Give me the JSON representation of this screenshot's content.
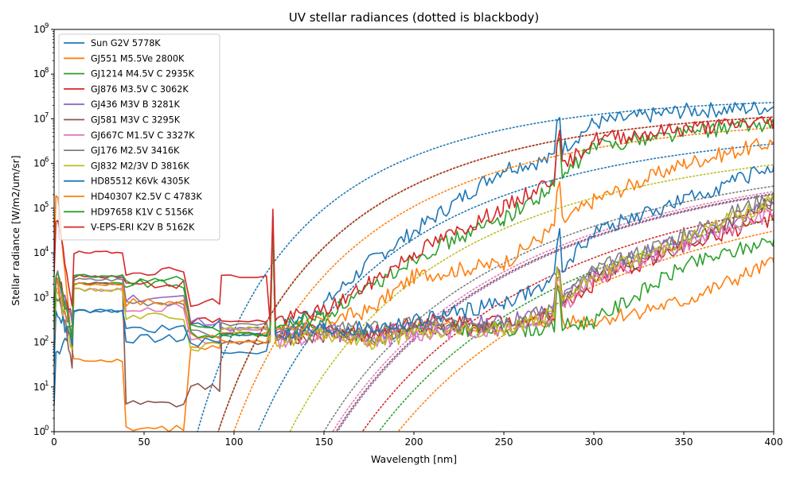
{
  "chart_data": {
    "type": "line",
    "title": "UV stellar radiances (dotted is blackbody)",
    "xlabel": "Wavelength [nm]",
    "ylabel": "Stellar radiance [W/m2/um/sr]",
    "xlim": [
      0,
      400
    ],
    "ylim_log10": [
      0,
      9
    ],
    "yscale": "log",
    "grid": false,
    "legend_position": "top-left",
    "x_ticks": [
      "0",
      "50",
      "100",
      "150",
      "200",
      "250",
      "300",
      "350",
      "400"
    ],
    "y_tick_mantissa": "10",
    "y_tick_exponents": [
      "0",
      "1",
      "2",
      "3",
      "4",
      "5",
      "6",
      "7",
      "8",
      "9"
    ],
    "series": [
      {
        "name": "Sun G2V 5778K",
        "color": "#1f77b4",
        "T": 5778,
        "lowband": [
          60,
          500,
          300,
          250,
          60
        ],
        "mid": [
          150,
          700,
          6000,
          30000,
          800000,
          1200000,
          8000000,
          15000000,
          18000000
        ]
      },
      {
        "name": "GJ551 M5.5Ve 2800K",
        "color": "#ff7f0e",
        "T": 2800,
        "lowband": [
          190000,
          40,
          3,
          70,
          150
        ],
        "mid": [
          150,
          150,
          120,
          200,
          200,
          300,
          300,
          800,
          6000
        ]
      },
      {
        "name": "GJ1214 M4.5V C 2935K",
        "color": "#2ca02c",
        "T": 2935,
        "lowband": [
          1000,
          2000,
          5000,
          200,
          150
        ],
        "mid": [
          200,
          250,
          120,
          200,
          200,
          200,
          300,
          5000,
          20000
        ]
      },
      {
        "name": "GJ876 M3.5V C 3062K",
        "color": "#d62728",
        "T": 3062,
        "lowband": [
          3000,
          3000,
          5000,
          300,
          300
        ],
        "mid": [
          100,
          200,
          150,
          300,
          300,
          400,
          2000,
          15000,
          60000
        ]
      },
      {
        "name": "GJ436 M3V B 3281K",
        "color": "#9467bd",
        "T": 3281,
        "lowband": [
          3000,
          3000,
          2500,
          300,
          200
        ],
        "mid": [
          150,
          200,
          150,
          200,
          300,
          500,
          4000,
          20000,
          120000
        ]
      },
      {
        "name": "GJ581 M3V C 3295K",
        "color": "#8c564b",
        "T": 3295,
        "lowband": [
          2000,
          2000,
          10,
          10,
          100
        ],
        "mid": [
          100,
          150,
          150,
          200,
          200,
          400,
          3000,
          15000,
          150000
        ]
      },
      {
        "name": "GJ667C M1.5V C 3327K",
        "color": "#e377c2",
        "T": 3327,
        "lowband": [
          1500,
          1500,
          1500,
          100,
          200
        ],
        "mid": [
          100,
          150,
          100,
          150,
          200,
          350,
          2500,
          15000,
          80000
        ]
      },
      {
        "name": "GJ176 M2.5V 3416K",
        "color": "#7f7f7f",
        "T": 3416,
        "lowband": [
          2500,
          2500,
          2000,
          150,
          250
        ],
        "mid": [
          150,
          200,
          200,
          250,
          300,
          500,
          4000,
          25000,
          200000
        ]
      },
      {
        "name": "GJ832 M2/3V D 3816K",
        "color": "#bcbd22",
        "T": 3816,
        "lowband": [
          1500,
          1500,
          1000,
          80,
          200
        ],
        "mid": [
          100,
          150,
          100,
          150,
          200,
          400,
          3000,
          20000,
          150000
        ]
      },
      {
        "name": "HD85512 K6Vk 4305K",
        "color": "#1f77b4",
        "T": 4305,
        "lowband": [
          500,
          500,
          500,
          100,
          150
        ],
        "mid": [
          150,
          200,
          200,
          300,
          800,
          2000,
          30000,
          150000,
          900000
        ]
      },
      {
        "name": "HD40307 K2.5V C 4783K",
        "color": "#ff7f0e",
        "T": 4783,
        "lowband": [
          2000,
          2000,
          2000,
          150,
          100
        ],
        "mid": [
          200,
          300,
          500,
          3000,
          6000,
          30000,
          150000,
          1000000,
          3000000
        ]
      },
      {
        "name": "HD97658 K1V C 5156K",
        "color": "#2ca02c",
        "T": 5156,
        "lowband": [
          3000,
          3000,
          6000,
          150,
          150
        ],
        "mid": [
          200,
          400,
          1500,
          8000,
          60000,
          250000,
          2500000,
          5000000,
          8000000
        ]
      },
      {
        "name": "V-EPS-ERI K2V B 5162K",
        "color": "#d62728",
        "T": 5162,
        "lowband": [
          50000,
          10000,
          10000,
          800,
          3000
        ],
        "mid": [
          300,
          500,
          2000,
          10000,
          100000,
          400000,
          3500000,
          6000000,
          9000000
        ]
      }
    ]
  }
}
